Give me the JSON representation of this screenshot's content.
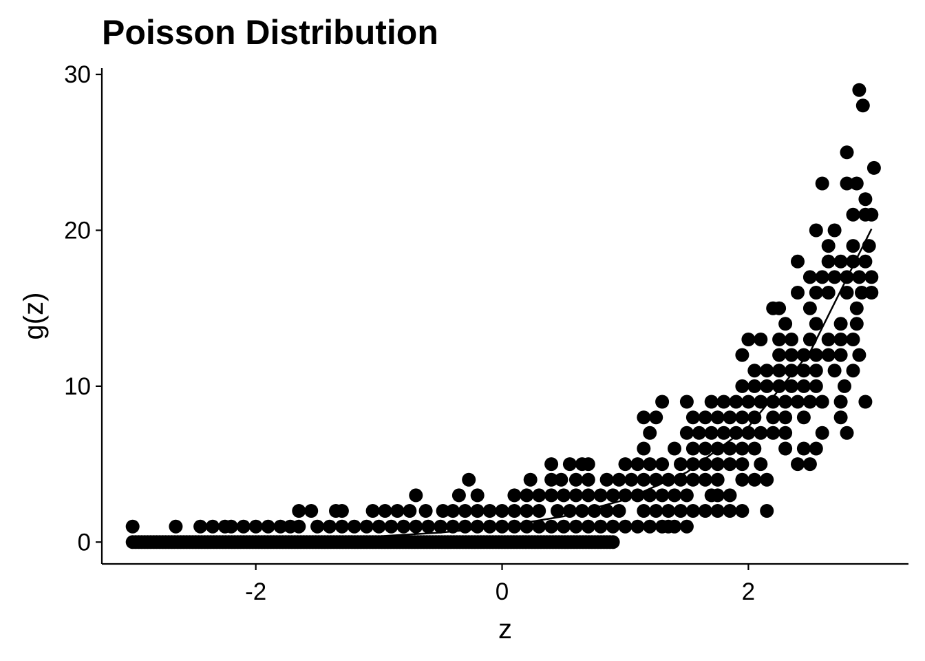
{
  "chart_data": {
    "type": "scatter",
    "title": "Poisson Distribution",
    "xlabel": "z",
    "ylabel": "g(z)",
    "xlim": [
      -3.25,
      3.3
    ],
    "ylim": [
      -1.4,
      30.4
    ],
    "x_ticks": [
      -2,
      0,
      2
    ],
    "x_tick_labels": [
      "-2",
      "0",
      "2"
    ],
    "y_ticks": [
      0,
      10,
      20,
      30
    ],
    "y_tick_labels": [
      "0",
      "10",
      "20",
      "30"
    ],
    "grid": false,
    "legend": "none",
    "point_color": "#000000",
    "line_color": "#000000",
    "series": [
      {
        "kind": "points",
        "note_points": "sampled counts g(z)",
        "points": [
          [
            -3.0,
            1
          ],
          [
            -2.65,
            1
          ],
          [
            -2.45,
            1
          ],
          [
            -2.35,
            1
          ],
          [
            -2.25,
            1
          ],
          [
            -2.2,
            1
          ],
          [
            -2.1,
            1
          ],
          [
            -2.0,
            1
          ],
          [
            -1.9,
            1
          ],
          [
            -1.8,
            1
          ],
          [
            -1.72,
            1
          ],
          [
            -1.65,
            1
          ],
          [
            -1.5,
            1
          ],
          [
            -1.4,
            1
          ],
          [
            -1.3,
            1
          ],
          [
            -1.2,
            1
          ],
          [
            -1.1,
            1
          ],
          [
            -1.0,
            1
          ],
          [
            -0.9,
            1
          ],
          [
            -0.8,
            1
          ],
          [
            -0.7,
            1
          ],
          [
            -0.6,
            1
          ],
          [
            -0.5,
            1
          ],
          [
            -0.4,
            1
          ],
          [
            -0.3,
            1
          ],
          [
            -0.2,
            1
          ],
          [
            -0.1,
            1
          ],
          [
            0.0,
            1
          ],
          [
            0.1,
            1
          ],
          [
            0.2,
            1
          ],
          [
            0.3,
            1
          ],
          [
            0.4,
            1
          ],
          [
            0.5,
            1
          ],
          [
            0.6,
            1
          ],
          [
            0.7,
            1
          ],
          [
            0.8,
            1
          ],
          [
            0.9,
            1
          ],
          [
            1.0,
            1
          ],
          [
            1.1,
            1
          ],
          [
            1.2,
            1
          ],
          [
            1.3,
            1
          ],
          [
            1.35,
            1
          ],
          [
            1.4,
            1
          ],
          [
            1.5,
            1
          ],
          [
            -1.65,
            2
          ],
          [
            -1.55,
            2
          ],
          [
            -1.35,
            2
          ],
          [
            -1.3,
            2
          ],
          [
            -1.05,
            2
          ],
          [
            -0.95,
            2
          ],
          [
            -0.85,
            2
          ],
          [
            -0.75,
            2
          ],
          [
            -0.62,
            2
          ],
          [
            -0.48,
            2
          ],
          [
            -0.4,
            2
          ],
          [
            -0.3,
            2
          ],
          [
            -0.2,
            2
          ],
          [
            -0.1,
            2
          ],
          [
            0.0,
            2
          ],
          [
            0.1,
            2
          ],
          [
            0.2,
            2
          ],
          [
            0.3,
            2
          ],
          [
            0.45,
            2
          ],
          [
            0.55,
            2
          ],
          [
            0.65,
            2
          ],
          [
            0.75,
            2
          ],
          [
            0.85,
            2
          ],
          [
            0.95,
            2
          ],
          [
            1.15,
            2
          ],
          [
            1.25,
            2
          ],
          [
            1.35,
            2
          ],
          [
            1.45,
            2
          ],
          [
            1.55,
            2
          ],
          [
            1.65,
            2
          ],
          [
            1.75,
            2
          ],
          [
            1.85,
            2
          ],
          [
            1.95,
            2
          ],
          [
            2.15,
            2
          ],
          [
            -0.7,
            3
          ],
          [
            -0.35,
            3
          ],
          [
            -0.2,
            3
          ],
          [
            0.1,
            3
          ],
          [
            0.2,
            3
          ],
          [
            0.3,
            3
          ],
          [
            0.4,
            3
          ],
          [
            0.5,
            3
          ],
          [
            0.6,
            3
          ],
          [
            0.7,
            3
          ],
          [
            0.8,
            3
          ],
          [
            0.9,
            3
          ],
          [
            1.0,
            3
          ],
          [
            1.1,
            3
          ],
          [
            1.2,
            3
          ],
          [
            1.3,
            3
          ],
          [
            1.4,
            3
          ],
          [
            1.5,
            3
          ],
          [
            1.7,
            3
          ],
          [
            1.75,
            3
          ],
          [
            1.85,
            3
          ],
          [
            -0.27,
            4
          ],
          [
            0.23,
            4
          ],
          [
            0.4,
            4
          ],
          [
            0.48,
            4
          ],
          [
            0.6,
            4
          ],
          [
            0.7,
            4
          ],
          [
            0.85,
            4
          ],
          [
            0.95,
            4
          ],
          [
            1.05,
            4
          ],
          [
            1.15,
            4
          ],
          [
            1.25,
            4
          ],
          [
            1.35,
            4
          ],
          [
            1.45,
            4
          ],
          [
            1.55,
            4
          ],
          [
            1.65,
            4
          ],
          [
            1.75,
            4
          ],
          [
            1.95,
            4
          ],
          [
            2.05,
            4
          ],
          [
            2.15,
            4
          ],
          [
            0.4,
            5
          ],
          [
            0.55,
            5
          ],
          [
            0.65,
            5
          ],
          [
            0.7,
            5
          ],
          [
            1.0,
            5
          ],
          [
            1.1,
            5
          ],
          [
            1.2,
            5
          ],
          [
            1.3,
            5
          ],
          [
            1.45,
            5
          ],
          [
            1.55,
            5
          ],
          [
            1.65,
            5
          ],
          [
            1.75,
            5
          ],
          [
            1.85,
            5
          ],
          [
            1.95,
            5
          ],
          [
            2.1,
            5
          ],
          [
            2.4,
            5
          ],
          [
            2.5,
            5
          ],
          [
            1.15,
            6
          ],
          [
            1.4,
            6
          ],
          [
            1.55,
            6
          ],
          [
            1.65,
            6
          ],
          [
            1.75,
            6
          ],
          [
            1.85,
            6
          ],
          [
            1.95,
            6
          ],
          [
            2.05,
            6
          ],
          [
            2.3,
            6
          ],
          [
            2.45,
            6
          ],
          [
            2.55,
            6
          ],
          [
            1.2,
            7
          ],
          [
            1.5,
            7
          ],
          [
            1.6,
            7
          ],
          [
            1.7,
            7
          ],
          [
            1.8,
            7
          ],
          [
            1.9,
            7
          ],
          [
            2.0,
            7
          ],
          [
            2.1,
            7
          ],
          [
            2.2,
            7
          ],
          [
            2.3,
            7
          ],
          [
            2.6,
            7
          ],
          [
            2.8,
            7
          ],
          [
            1.15,
            8
          ],
          [
            1.25,
            8
          ],
          [
            1.55,
            8
          ],
          [
            1.65,
            8
          ],
          [
            1.75,
            8
          ],
          [
            1.85,
            8
          ],
          [
            1.95,
            8
          ],
          [
            2.05,
            8
          ],
          [
            2.2,
            8
          ],
          [
            2.3,
            8
          ],
          [
            2.45,
            8
          ],
          [
            2.75,
            8
          ],
          [
            1.3,
            9
          ],
          [
            1.5,
            9
          ],
          [
            1.7,
            9
          ],
          [
            1.8,
            9
          ],
          [
            1.9,
            9
          ],
          [
            2.0,
            9
          ],
          [
            2.1,
            9
          ],
          [
            2.2,
            9
          ],
          [
            2.3,
            9
          ],
          [
            2.4,
            9
          ],
          [
            2.5,
            9
          ],
          [
            2.6,
            9
          ],
          [
            2.75,
            9
          ],
          [
            2.95,
            9
          ],
          [
            1.95,
            10
          ],
          [
            2.05,
            10
          ],
          [
            2.15,
            10
          ],
          [
            2.25,
            10
          ],
          [
            2.35,
            10
          ],
          [
            2.45,
            10
          ],
          [
            2.55,
            10
          ],
          [
            2.78,
            10
          ],
          [
            2.05,
            11
          ],
          [
            2.15,
            11
          ],
          [
            2.25,
            11
          ],
          [
            2.35,
            11
          ],
          [
            2.45,
            11
          ],
          [
            2.55,
            11
          ],
          [
            2.7,
            11
          ],
          [
            2.85,
            11
          ],
          [
            1.95,
            12
          ],
          [
            2.25,
            12
          ],
          [
            2.35,
            12
          ],
          [
            2.45,
            12
          ],
          [
            2.55,
            12
          ],
          [
            2.65,
            12
          ],
          [
            2.75,
            12
          ],
          [
            2.9,
            12
          ],
          [
            2.0,
            13
          ],
          [
            2.1,
            13
          ],
          [
            2.25,
            13
          ],
          [
            2.35,
            13
          ],
          [
            2.5,
            13
          ],
          [
            2.65,
            13
          ],
          [
            2.75,
            13
          ],
          [
            2.85,
            13
          ],
          [
            2.3,
            14
          ],
          [
            2.55,
            14
          ],
          [
            2.75,
            14
          ],
          [
            2.88,
            14
          ],
          [
            2.2,
            15
          ],
          [
            2.25,
            15
          ],
          [
            2.5,
            15
          ],
          [
            2.88,
            15
          ],
          [
            2.4,
            16
          ],
          [
            2.55,
            16
          ],
          [
            2.65,
            16
          ],
          [
            2.8,
            16
          ],
          [
            2.92,
            16
          ],
          [
            3.0,
            16
          ],
          [
            2.5,
            17
          ],
          [
            2.6,
            17
          ],
          [
            2.7,
            17
          ],
          [
            2.8,
            17
          ],
          [
            2.9,
            17
          ],
          [
            3.0,
            17
          ],
          [
            2.4,
            18
          ],
          [
            2.65,
            18
          ],
          [
            2.75,
            18
          ],
          [
            2.85,
            18
          ],
          [
            2.95,
            18
          ],
          [
            2.65,
            19
          ],
          [
            2.85,
            19
          ],
          [
            2.98,
            19
          ],
          [
            2.55,
            20
          ],
          [
            2.7,
            20
          ],
          [
            2.85,
            21
          ],
          [
            2.95,
            21
          ],
          [
            3.0,
            21
          ],
          [
            2.95,
            22
          ],
          [
            2.6,
            23
          ],
          [
            2.8,
            23
          ],
          [
            2.88,
            23
          ],
          [
            3.02,
            24
          ],
          [
            2.8,
            25
          ],
          [
            2.93,
            28
          ],
          [
            2.9,
            29
          ]
        ],
        "zero_band": {
          "from": -3.0,
          "to": 0.9,
          "y": 0
        }
      },
      {
        "kind": "line",
        "x": [
          -3.0,
          -2.5,
          -2.0,
          -1.5,
          -1.0,
          -0.5,
          0.0,
          0.5,
          1.0,
          1.5,
          2.0,
          2.5,
          3.0
        ],
        "y": [
          0.05,
          0.08,
          0.14,
          0.22,
          0.37,
          0.61,
          1.0,
          1.65,
          2.72,
          4.48,
          7.39,
          12.18,
          20.09
        ]
      }
    ]
  }
}
